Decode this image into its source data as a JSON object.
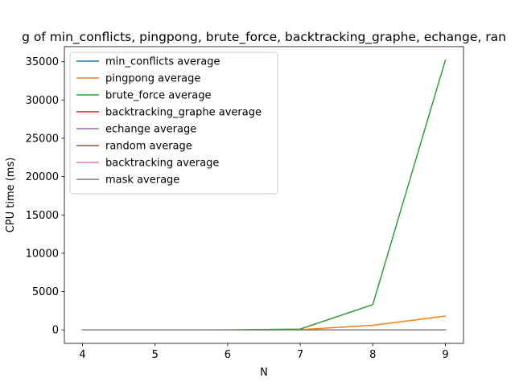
{
  "chart_data": {
    "type": "line",
    "title": "g of min_conflicts, pingpong, brute_force, backtracking_graphe, echange, ran",
    "xlabel": "N",
    "ylabel": "CPU time (ms)",
    "x": [
      4,
      5,
      6,
      7,
      8,
      9
    ],
    "xlim": [
      3.75,
      9.25
    ],
    "ylim": [
      -1760,
      36960
    ],
    "xticks": [
      4,
      5,
      6,
      7,
      8,
      9
    ],
    "yticks": [
      0,
      5000,
      10000,
      15000,
      20000,
      25000,
      30000,
      35000
    ],
    "legend_position": "upper left",
    "series": [
      {
        "name": "min_conflicts average",
        "color": "#1f77b4",
        "values": [
          0,
          0,
          0,
          0,
          0,
          0
        ]
      },
      {
        "name": "pingpong average",
        "color": "#ff7f0e",
        "values": [
          0,
          0,
          0,
          30,
          600,
          1800
        ]
      },
      {
        "name": "brute_force average",
        "color": "#2ca02c",
        "values": [
          0,
          0,
          5,
          100,
          3300,
          35200
        ]
      },
      {
        "name": "backtracking_graphe average",
        "color": "#d62728",
        "values": [
          0,
          0,
          0,
          0,
          0,
          0
        ]
      },
      {
        "name": "echange average",
        "color": "#9467bd",
        "values": [
          0,
          0,
          0,
          0,
          0,
          0
        ]
      },
      {
        "name": "random average",
        "color": "#8c564b",
        "values": [
          0,
          0,
          0,
          0,
          0,
          0
        ]
      },
      {
        "name": "backtracking average",
        "color": "#e377c2",
        "values": [
          0,
          0,
          0,
          0,
          0,
          0
        ]
      },
      {
        "name": "mask average",
        "color": "#7f7f7f",
        "values": [
          0,
          0,
          0,
          0,
          0,
          0
        ]
      }
    ]
  }
}
